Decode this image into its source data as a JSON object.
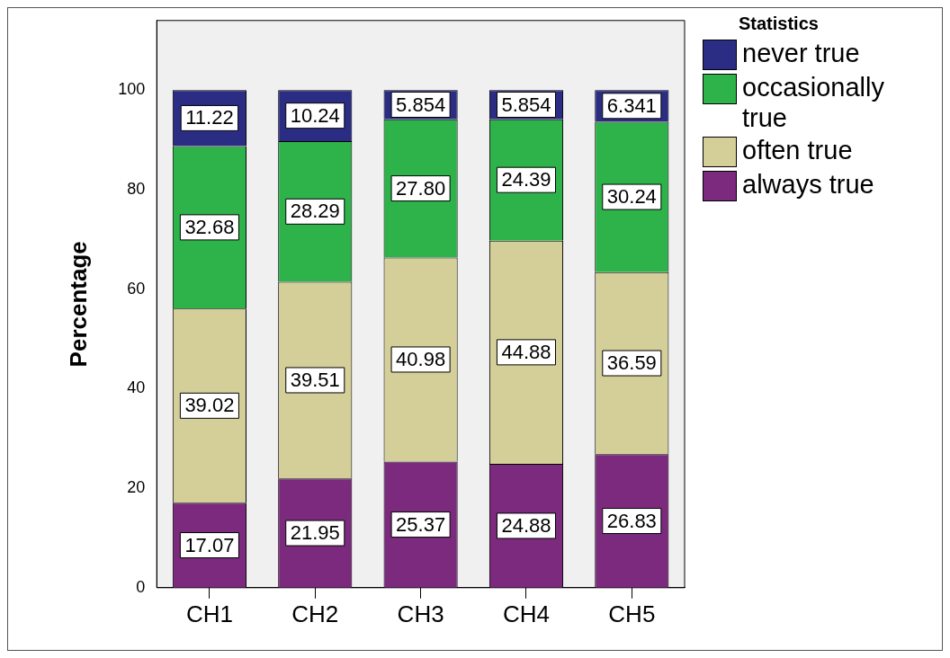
{
  "chart_data": {
    "type": "bar",
    "stacked": true,
    "ylabel": "Percentage",
    "legend_title": "Statistics",
    "legend": "right",
    "categories": [
      "CH1",
      "CH2",
      "CH3",
      "CH4",
      "CH5"
    ],
    "series": [
      {
        "name": "always true",
        "color": "#7b2a7d",
        "values": [
          17.07,
          21.95,
          25.37,
          24.88,
          26.83
        ],
        "value_labels": [
          "17.07",
          "21.95",
          "25.37",
          "24.88",
          "26.83"
        ]
      },
      {
        "name": "often true",
        "color": "#d4cf99",
        "values": [
          39.02,
          39.51,
          40.98,
          44.88,
          36.59
        ],
        "value_labels": [
          "39.02",
          "39.51",
          "40.98",
          "44.88",
          "36.59"
        ]
      },
      {
        "name": "occasionally true",
        "color": "#2db34a",
        "values": [
          32.68,
          28.29,
          27.8,
          24.39,
          30.24
        ],
        "value_labels": [
          "32.68",
          "28.29",
          "27.80",
          "24.39",
          "30.24"
        ]
      },
      {
        "name": "never true",
        "color": "#2b2d85",
        "values": [
          11.22,
          10.24,
          5.854,
          5.854,
          6.341
        ],
        "value_labels": [
          "11.22",
          "10.24",
          "5.854",
          "5.854",
          "6.341"
        ]
      }
    ],
    "ylim": [
      0,
      114
    ],
    "yticks": [
      0,
      20,
      40,
      60,
      80,
      100
    ],
    "grid": false
  }
}
